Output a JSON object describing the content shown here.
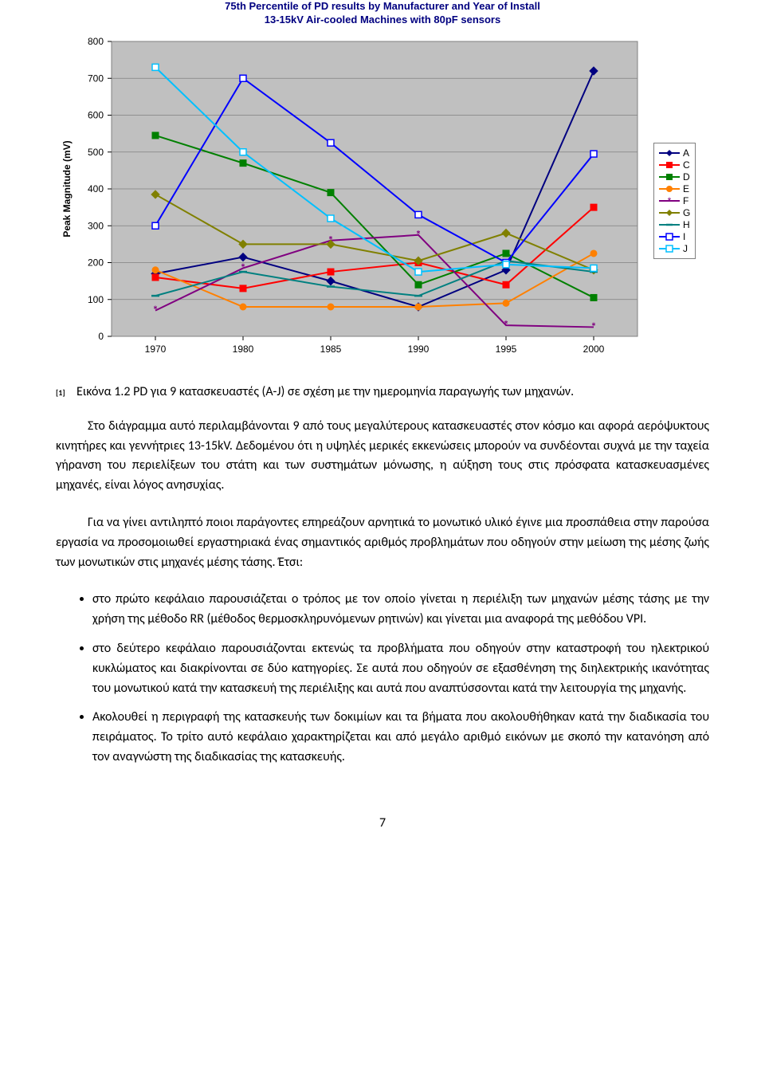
{
  "chart": {
    "type": "line",
    "title_line1": "75th Percentile of PD results by Manufacturer and Year of Install",
    "title_line2": "13-15kV Air-cooled Machines with 80pF sensors",
    "title_fontsize": 13,
    "title_color": "#000080",
    "ylabel": "Peak Magnitude (mV)",
    "label_fontsize": 12,
    "xlim": [
      1968,
      2002
    ],
    "ylim": [
      0,
      800
    ],
    "ytick_step": 100,
    "x_categories": [
      1970,
      1980,
      1985,
      1990,
      1995,
      2000
    ],
    "plot_background": "#c0c0c0",
    "grid_color": "#808080",
    "axis_color": "#808080",
    "series": [
      {
        "name": "A",
        "color": "#000080",
        "marker": "diamond",
        "values": [
          170,
          215,
          150,
          80,
          180,
          720
        ]
      },
      {
        "name": "C",
        "color": "#ff0000",
        "marker": "square",
        "values": [
          160,
          130,
          175,
          200,
          140,
          350
        ]
      },
      {
        "name": "D",
        "color": "#008000",
        "marker": "square",
        "values": [
          545,
          470,
          390,
          140,
          225,
          105
        ]
      },
      {
        "name": "E",
        "color": "#ff8000",
        "marker": "circle",
        "values": [
          180,
          80,
          80,
          80,
          90,
          225
        ]
      },
      {
        "name": "F",
        "color": "#800080",
        "marker": "star",
        "values": [
          70,
          185,
          260,
          275,
          30,
          25
        ]
      },
      {
        "name": "G",
        "color": "#808000",
        "marker": "diamond",
        "values": [
          385,
          250,
          250,
          205,
          280,
          180
        ]
      },
      {
        "name": "H",
        "color": "#008080",
        "marker": "hline",
        "values": [
          110,
          175,
          135,
          110,
          205,
          175
        ]
      },
      {
        "name": "I",
        "color": "#0000ff",
        "marker": "squareO",
        "values": [
          300,
          700,
          525,
          330,
          200,
          495
        ]
      },
      {
        "name": "J",
        "color": "#00c0ff",
        "marker": "squareO",
        "values": [
          730,
          500,
          320,
          175,
          195,
          185
        ]
      }
    ]
  },
  "caption": "Εικόνα 1.2 PD για 9 κατασκευαστές (A-J) σε σχέση με την ημερομηνία παραγωγής των μηχανών.",
  "citation": "[1]",
  "paragraph1": "Στο διάγραμμα αυτό περιλαμβάνονται 9 από τους μεγαλύτερους κατασκευαστές στον κόσμο και αφορά αερόψυκτους κινητήρες και γεννήτριες 13-15kV. Δεδομένου ότι η υψηλές μερικές εκκενώσεις μπορούν να συνδέονται συχνά με την ταχεία γήρανση του περιελίξεων του στάτη και των συστημάτων μόνωσης, η αύξηση τους στις πρόσφατα κατασκευασμένες μηχανές, είναι λόγος ανησυχίας.",
  "paragraph2": "Για να γίνει αντιληπτό ποιοι παράγοντες επηρεάζουν αρνητικά το μονωτικό υλικό έγινε μια προσπάθεια στην παρούσα εργασία να προσομοιωθεί εργαστηριακά ένας σημαντικός αριθμός προβλημάτων που οδηγούν στην μείωση της μέσης ζωής των μονωτικών στις μηχανές μέσης τάσης. Έτσι:",
  "bullets": [
    "στο πρώτο κεφάλαιο παρουσιάζεται ο τρόπος με τον οποίο γίνεται η περιέλιξη των μηχανών μέσης τάσης με την χρήση της μέθοδο RR (μέθοδος θερμοσκληρυνόμενων ρητινών) και γίνεται μια αναφορά της μεθόδου VPI.",
    "στο δεύτερο κεφάλαιο παρουσιάζονται εκτενώς τα προβλήματα που οδηγούν στην καταστροφή του ηλεκτρικού κυκλώματος και διακρίνονται σε δύο κατηγορίες. Σε αυτά που οδηγούν σε εξασθένηση της διηλεκτρικής ικανότητας του μονωτικού κατά την κατασκευή της περιέλιξης και αυτά που αναπτύσσονται κατά την λειτουργία της μηχανής.",
    "Ακολουθεί η περιγραφή της κατασκευής των δοκιμίων και τα βήματα που ακολουθήθηκαν κατά την διαδικασία του πειράματος. Το τρίτο αυτό κεφάλαιο χαρακτηρίζεται και από μεγάλο αριθμό εικόνων με σκοπό την κατανόηση από τον αναγνώστη της διαδικασίας της κατασκευής."
  ],
  "page_number": "7"
}
